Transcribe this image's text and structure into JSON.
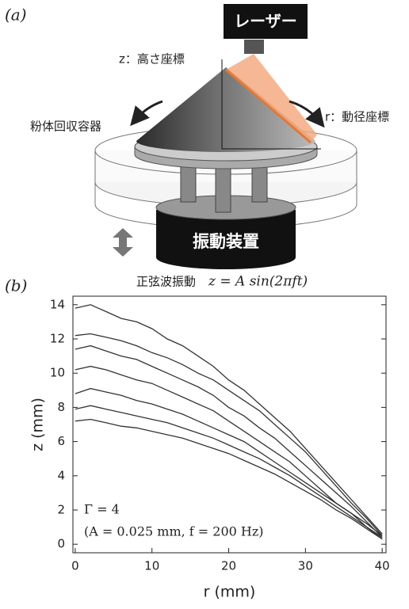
{
  "panel_labels": [
    "(a)",
    "(b)"
  ],
  "diagram": {
    "laser": "レーザー",
    "z_axis": "z：高さ座標",
    "r_axis": "r：動径座標",
    "container": "粉体回収容器",
    "vibrator": "振動装置",
    "vibration": "正弦波振動",
    "formula": "z = A sin(2πft)"
  },
  "chart_data": {
    "type": "line",
    "xlabel": "r (mm)",
    "ylabel": "z (mm)",
    "annotations": [
      "Γ = 4",
      "(A = 0.025 mm, f = 200 Hz)"
    ],
    "x": [
      0,
      2,
      4,
      6,
      8,
      10,
      12,
      14,
      16,
      18,
      20,
      22,
      24,
      26,
      28,
      30,
      32,
      34,
      36,
      38,
      40
    ],
    "series": [
      {
        "color": "#333333",
        "values": [
          13.8,
          14.0,
          13.6,
          13.2,
          13.0,
          12.6,
          12.0,
          11.6,
          11.0,
          10.4,
          9.6,
          9.0,
          8.2,
          7.4,
          6.6,
          5.6,
          4.6,
          3.6,
          2.6,
          1.6,
          0.6
        ]
      },
      {
        "color": "#333333",
        "values": [
          12.2,
          12.3,
          12.1,
          11.9,
          11.6,
          11.2,
          10.9,
          10.5,
          10.0,
          9.6,
          9.0,
          8.4,
          7.8,
          7.0,
          6.2,
          5.4,
          4.4,
          3.4,
          2.4,
          1.5,
          0.5
        ]
      },
      {
        "color": "#333333",
        "values": [
          11.4,
          11.6,
          11.3,
          11.0,
          10.8,
          10.4,
          10.0,
          9.6,
          9.2,
          8.7,
          8.0,
          7.5,
          6.8,
          6.2,
          5.4,
          4.6,
          3.8,
          3.0,
          2.2,
          1.3,
          0.4
        ]
      },
      {
        "color": "#333333",
        "values": [
          10.2,
          10.4,
          10.2,
          9.9,
          9.6,
          9.4,
          9.0,
          8.6,
          8.2,
          7.8,
          7.2,
          6.6,
          6.0,
          5.4,
          4.8,
          4.0,
          3.2,
          2.4,
          1.8,
          1.0,
          0.3
        ]
      },
      {
        "color": "#333333",
        "values": [
          8.8,
          9.1,
          8.9,
          8.7,
          8.4,
          8.2,
          7.9,
          7.6,
          7.2,
          6.8,
          6.4,
          6.0,
          5.4,
          4.8,
          4.2,
          3.6,
          3.0,
          2.4,
          1.8,
          1.2,
          0.5
        ]
      },
      {
        "color": "#333333",
        "values": [
          7.9,
          8.1,
          7.9,
          7.7,
          7.5,
          7.3,
          7.1,
          6.8,
          6.5,
          6.2,
          5.8,
          5.4,
          5.0,
          4.5,
          4.0,
          3.4,
          2.8,
          2.2,
          1.6,
          1.0,
          0.4
        ]
      },
      {
        "color": "#333333",
        "values": [
          7.2,
          7.3,
          7.1,
          6.9,
          6.8,
          6.6,
          6.4,
          6.2,
          5.9,
          5.6,
          5.3,
          4.9,
          4.5,
          4.1,
          3.6,
          3.1,
          2.6,
          2.0,
          1.5,
          0.9,
          0.3
        ]
      }
    ],
    "xlim": [
      -0.3,
      40.5
    ],
    "ylim": [
      -0.5,
      14.5
    ],
    "xticks": [
      0,
      10,
      20,
      30,
      40
    ],
    "yticks": [
      0,
      2,
      4,
      6,
      8,
      10,
      12,
      14
    ]
  }
}
